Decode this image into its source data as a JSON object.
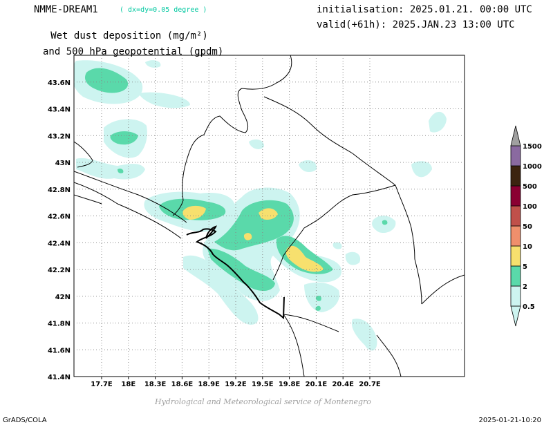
{
  "header": {
    "model": "NMME-DREAM1",
    "resolution": "( dx=dy=0.05 degree )",
    "title_line1": "Wet dust deposition (mg/m²)",
    "title_line2": "and 500 hPa geopotential (gpdm)",
    "initialisation": "initialisation: 2025.01.21. 00:00 UTC",
    "valid": "valid(+61h): 2025.JAN.23 13:00 UTC"
  },
  "map": {
    "lon_ticks": [
      "17.7E",
      "18E",
      "18.3E",
      "18.6E",
      "18.9E",
      "19.2E",
      "19.5E",
      "19.8E",
      "20.1E",
      "20.4E",
      "20.7E"
    ],
    "lat_ticks": [
      "43.6N",
      "43.4N",
      "43.2N",
      "43N",
      "42.8N",
      "42.6N",
      "42.4N",
      "42.2N",
      "42N",
      "41.8N",
      "41.6N",
      "41.4N"
    ]
  },
  "legend": {
    "levels": [
      "0.5",
      "2",
      "5",
      "10",
      "50",
      "100",
      "500",
      "1000",
      "1500"
    ],
    "colors": [
      "#cdf4f0",
      "#5ad9aa",
      "#f7e06e",
      "#ef8f6c",
      "#c0504a",
      "#8a0032",
      "#3c2410",
      "#8a6aa0",
      "#a0a0a0"
    ]
  },
  "footer": {
    "credit": "Hydrological and Meteorological service of Montenegro",
    "left": "GrADS/COLA",
    "right": "2025-01-21-10:20"
  }
}
